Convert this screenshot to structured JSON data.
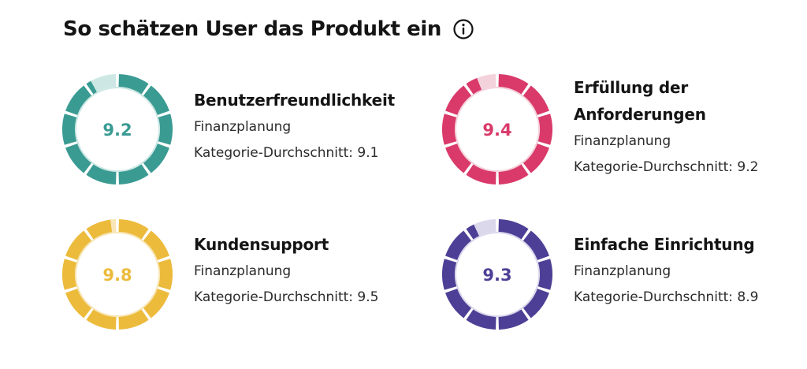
{
  "header": {
    "title": "So schätzen User das Produkt ein",
    "info_icon": "info-circle-icon"
  },
  "cards": [
    {
      "key": "ease-of-use",
      "score": "9.2",
      "score_value": 9.2,
      "title_lines": [
        "Benutzerfreundlichkeit"
      ],
      "category": "Finanzplanung",
      "average": "Kategorie-Durchschnitt: 9.1",
      "color": "#3a9b93",
      "light_color": "#cde8e4"
    },
    {
      "key": "requirements",
      "score": "9.4",
      "score_value": 9.4,
      "title_lines": [
        "Erfüllung der",
        "Anforderungen"
      ],
      "category": "Finanzplanung",
      "average": "Kategorie-Durchschnitt: 9.2",
      "color": "#d93a6a",
      "light_color": "#f4d2dc"
    },
    {
      "key": "support",
      "score": "9.8",
      "score_value": 9.8,
      "title_lines": [
        "Kundensupport"
      ],
      "category": "Finanzplanung",
      "average": "Kategorie-Durchschnitt: 9.5",
      "color": "#ecbb3c",
      "light_color": "#f8e6b6"
    },
    {
      "key": "setup",
      "score": "9.3",
      "score_value": 9.3,
      "title_lines": [
        "Einfache Einrichtung"
      ],
      "category": "Finanzplanung",
      "average": "Kategorie-Durchschnitt: 8.9",
      "color": "#4e3f96",
      "light_color": "#dcd8ec"
    }
  ]
}
